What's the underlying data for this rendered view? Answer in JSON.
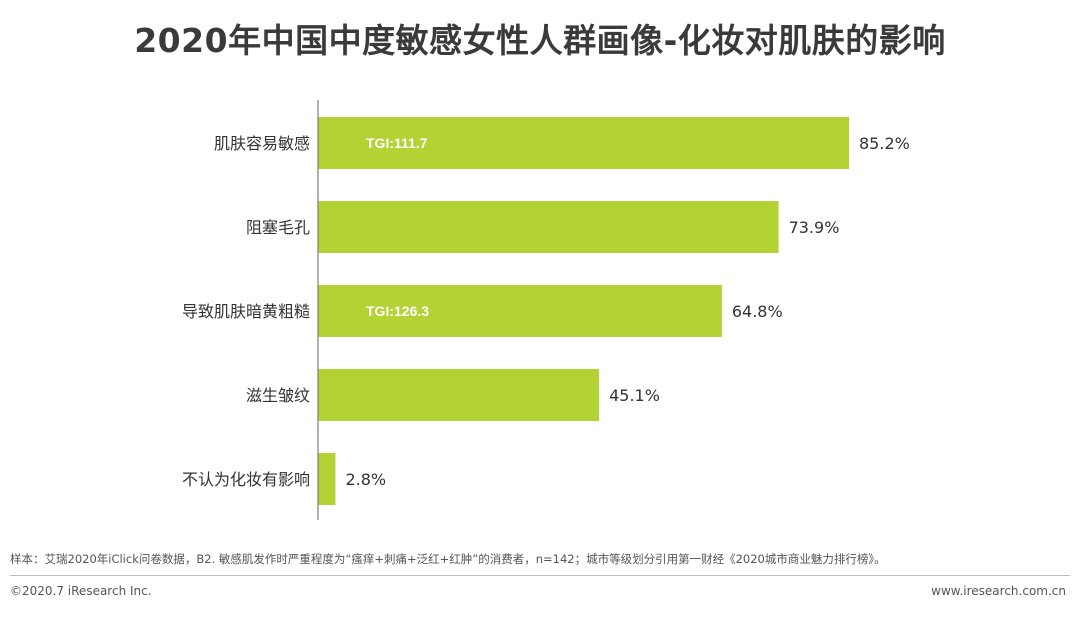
{
  "title": "2020年中国中度敏感女性人群画像-化妆对肌肤的影响",
  "chart_data": {
    "type": "bar",
    "orientation": "horizontal",
    "categories": [
      "肌肤容易敏感",
      "阻塞毛孔",
      "导致肌肤暗黄粗糙",
      "滋生皱纹",
      "不认为化妆有影响"
    ],
    "values": [
      85.2,
      73.9,
      64.8,
      45.1,
      2.8
    ],
    "value_labels": [
      "85.2%",
      "73.9%",
      "64.8%",
      "45.1%",
      "2.8%"
    ],
    "annotations": [
      "TGI:111.7",
      "",
      "TGI:126.3",
      "",
      ""
    ],
    "bar_color": "#b3d334",
    "xlim": [
      0,
      100
    ],
    "title": "2020年中国中度敏感女性人群画像-化妆对肌肤的影响",
    "xlabel": "",
    "ylabel": "",
    "grid": false,
    "legend": "none"
  },
  "footnote": "样本：艾瑞2020年iClick问卷数据，B2. 敏感肌发作时严重程度为“瘙痒+刺痛+泛红+红肿”的消费者，n=142；城市等级划分引用第一财经《2020城市商业魅力排行榜》。",
  "copyright": "©2020.7 iResearch Inc.",
  "website": "www.iresearch.com.cn"
}
